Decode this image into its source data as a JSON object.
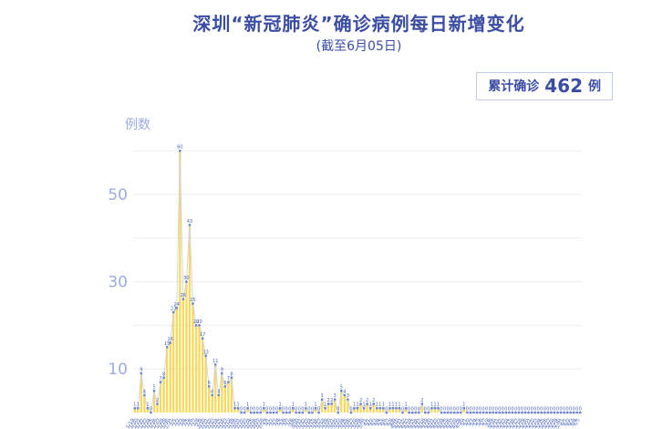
{
  "header": {
    "title": "深圳“新冠肺炎”确诊病例每日新增变化",
    "subtitle": "(截至6月05日)"
  },
  "badge": {
    "label": "累计确诊",
    "value": "462",
    "unit": "例"
  },
  "chart_data": {
    "type": "bar",
    "title": "深圳“新冠肺炎”确诊病例每日新增变化",
    "subtitle": "(截至6月05日)",
    "ylabel": "例数",
    "xlabel": "",
    "ylim": [
      0,
      60
    ],
    "yticks_labeled": [
      10,
      30,
      50
    ],
    "gridline_values": [
      10,
      20,
      30,
      40,
      50,
      60
    ],
    "legend_position": "none",
    "grid": true,
    "overlay_line": true,
    "point_labels_shown": true,
    "x": [
      "1/19",
      "1/20",
      "1/21",
      "1/22",
      "1/23",
      "1/24",
      "1/25",
      "1/26",
      "1/27",
      "1/28",
      "1/29",
      "1/30",
      "1/31",
      "2/1",
      "2/2",
      "2/3",
      "2/4",
      "2/5",
      "2/6",
      "2/7",
      "2/8",
      "2/9",
      "2/10",
      "2/11",
      "2/12",
      "2/13",
      "2/14",
      "2/15",
      "2/16",
      "2/17",
      "2/18",
      "2/19",
      "2/20",
      "2/21",
      "2/22",
      "2/23",
      "2/24",
      "2/25",
      "2/26",
      "2/27",
      "2/28",
      "2/29",
      "3/1",
      "3/2",
      "3/3",
      "3/4",
      "3/5",
      "3/6",
      "3/7",
      "3/8",
      "3/9",
      "3/10",
      "3/11",
      "3/12",
      "3/13",
      "3/14",
      "3/15",
      "3/16",
      "3/17",
      "3/18",
      "3/19",
      "3/20",
      "3/21",
      "3/22",
      "3/23",
      "3/24",
      "3/25",
      "3/26",
      "3/27",
      "3/28",
      "3/29",
      "3/30",
      "3/31",
      "4/1",
      "4/2",
      "4/3",
      "4/4",
      "4/5",
      "4/6",
      "4/7",
      "4/8",
      "4/9",
      "4/10",
      "4/11",
      "4/12",
      "4/13",
      "4/14",
      "4/15",
      "4/16",
      "4/17",
      "4/18",
      "4/19",
      "4/20",
      "4/21",
      "4/22",
      "4/23",
      "4/24",
      "4/25",
      "4/26",
      "4/27",
      "4/28",
      "4/29",
      "4/30",
      "5/1",
      "5/2",
      "5/3",
      "5/4",
      "5/5",
      "5/6",
      "5/7",
      "5/8",
      "5/9",
      "5/10",
      "5/11",
      "5/12",
      "5/13",
      "5/14",
      "5/15",
      "5/16",
      "5/17",
      "5/18",
      "5/19",
      "5/20",
      "5/21",
      "5/22",
      "5/23",
      "5/24",
      "5/25",
      "5/26",
      "5/27",
      "5/28",
      "5/29",
      "5/30",
      "5/31",
      "6/1",
      "6/2",
      "6/3",
      "6/4",
      "6/5"
    ],
    "values": [
      1,
      1,
      9,
      4,
      1,
      0,
      5,
      2,
      7,
      8,
      15,
      16,
      23,
      24,
      60,
      26,
      30,
      43,
      25,
      20,
      20,
      17,
      13,
      6,
      4,
      11,
      4,
      9,
      6,
      7,
      8,
      1,
      1,
      0,
      0,
      1,
      0,
      0,
      0,
      0,
      1,
      0,
      0,
      0,
      0,
      1,
      0,
      0,
      0,
      1,
      0,
      0,
      0,
      1,
      0,
      0,
      1,
      0,
      3,
      1,
      2,
      2,
      3,
      0,
      5,
      4,
      3,
      0,
      1,
      1,
      2,
      1,
      2,
      1,
      2,
      1,
      1,
      1,
      0,
      1,
      1,
      1,
      1,
      0,
      1,
      0,
      0,
      0,
      0,
      2,
      0,
      0,
      1,
      1,
      1,
      0,
      0,
      0,
      0,
      0,
      0,
      0,
      1,
      0,
      0,
      0,
      0,
      0,
      0,
      0,
      0,
      0,
      0,
      0,
      0,
      0,
      0,
      0,
      0,
      0,
      0,
      0,
      0,
      0,
      0,
      0,
      0,
      0,
      0,
      0,
      0,
      0,
      0,
      0,
      0,
      0,
      0,
      0,
      0
    ]
  },
  "colors": {
    "title": "#3b4da3",
    "axis_text": "#9cabdf",
    "bar": "#f8d95e",
    "trend_line": "#ccd3e2",
    "marker": "#6b82cb",
    "value_label": "#4a63bd",
    "x_label": "#5b74c5",
    "grid": "#ededf1",
    "badge_border": "#c5cde6"
  }
}
